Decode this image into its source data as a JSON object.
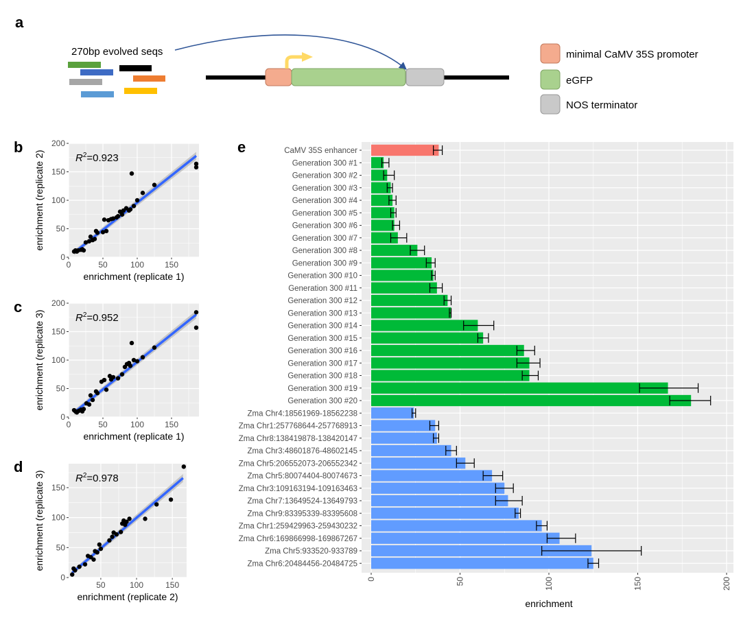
{
  "panels": {
    "a": "a",
    "b": "b",
    "c": "c",
    "d": "d",
    "e": "e"
  },
  "construct": {
    "evolved_label": "270bp evolved seqs",
    "legend": [
      {
        "label": "minimal CaMV 35S promoter",
        "color": "#f4ab8e"
      },
      {
        "label": "eGFP",
        "color": "#a9d18e"
      },
      {
        "label": "NOS terminator",
        "color": "#c9c9c9"
      }
    ],
    "seq_colors": [
      "#5aa13c",
      "#3e6bc4",
      "#000000",
      "#ee7d31",
      "#a6a6a6",
      "#ffc000",
      "#5b9bd5"
    ],
    "arrow_color": "#2f5597",
    "tss_color": "#ffd966"
  },
  "colors": {
    "panel_bg": "#ebebeb",
    "grid": "#ffffff",
    "enhancer": "#f8766d",
    "generation": "#00ba38",
    "genomic": "#619cff",
    "fit_line": "#3366ff",
    "ribbon": "#b5b5b5",
    "point": "#000000"
  },
  "chart_data": [
    {
      "type": "scatter",
      "panel": "b",
      "xlabel": "enrichment (replicate 1)",
      "ylabel": "enrichment (replicate 2)",
      "annotation": {
        "r_label": "R",
        "r_exp": "2",
        "value": "=0.923"
      },
      "xlim": [
        0,
        190
      ],
      "ylim": [
        0,
        200
      ],
      "xticks": [
        0,
        50,
        100,
        150
      ],
      "yticks": [
        0,
        50,
        100,
        150,
        200
      ],
      "fit": {
        "x": [
          8,
          186
        ],
        "y": [
          8,
          178
        ]
      },
      "points": [
        [
          8,
          10
        ],
        [
          10,
          12
        ],
        [
          12,
          10
        ],
        [
          14,
          12
        ],
        [
          18,
          13
        ],
        [
          20,
          14
        ],
        [
          22,
          12
        ],
        [
          25,
          26
        ],
        [
          30,
          28
        ],
        [
          32,
          36
        ],
        [
          35,
          30
        ],
        [
          38,
          32
        ],
        [
          40,
          46
        ],
        [
          42,
          43
        ],
        [
          50,
          44
        ],
        [
          52,
          66
        ],
        [
          55,
          46
        ],
        [
          58,
          65
        ],
        [
          62,
          67
        ],
        [
          65,
          68
        ],
        [
          70,
          70
        ],
        [
          72,
          72
        ],
        [
          75,
          80
        ],
        [
          78,
          75
        ],
        [
          80,
          82
        ],
        [
          84,
          86
        ],
        [
          88,
          82
        ],
        [
          90,
          84
        ],
        [
          92,
          147
        ],
        [
          95,
          90
        ],
        [
          100,
          100
        ],
        [
          108,
          113
        ],
        [
          125,
          127
        ],
        [
          186,
          164
        ],
        [
          186,
          158
        ]
      ]
    },
    {
      "type": "scatter",
      "panel": "c",
      "xlabel": "enrichment (replicate 1)",
      "ylabel": "enrichment (replicate 3)",
      "annotation": {
        "r_label": "R",
        "r_exp": "2",
        "value": "=0.952"
      },
      "xlim": [
        0,
        190
      ],
      "ylim": [
        0,
        200
      ],
      "xticks": [
        0,
        50,
        100,
        150
      ],
      "yticks": [
        0,
        50,
        100,
        150,
        200
      ],
      "fit": {
        "x": [
          8,
          186
        ],
        "y": [
          8,
          180
        ]
      },
      "points": [
        [
          8,
          12
        ],
        [
          10,
          10
        ],
        [
          12,
          8
        ],
        [
          15,
          11
        ],
        [
          18,
          13
        ],
        [
          20,
          10
        ],
        [
          22,
          14
        ],
        [
          26,
          24
        ],
        [
          30,
          22
        ],
        [
          32,
          38
        ],
        [
          35,
          30
        ],
        [
          40,
          45
        ],
        [
          42,
          42
        ],
        [
          48,
          62
        ],
        [
          52,
          65
        ],
        [
          55,
          48
        ],
        [
          60,
          72
        ],
        [
          62,
          66
        ],
        [
          65,
          70
        ],
        [
          72,
          68
        ],
        [
          78,
          75
        ],
        [
          82,
          88
        ],
        [
          85,
          93
        ],
        [
          88,
          95
        ],
        [
          90,
          90
        ],
        [
          92,
          130
        ],
        [
          95,
          100
        ],
        [
          100,
          98
        ],
        [
          108,
          105
        ],
        [
          125,
          122
        ],
        [
          186,
          184
        ],
        [
          186,
          157
        ]
      ]
    },
    {
      "type": "scatter",
      "panel": "d",
      "xlabel": "enrichment (replicate 2)",
      "ylabel": "enrichment (replicate 3)",
      "annotation": {
        "r_label": "R",
        "r_exp": "2",
        "value": "=0.978"
      },
      "xlim": [
        5,
        170
      ],
      "ylim": [
        0,
        190
      ],
      "xticks": [
        50,
        100,
        150
      ],
      "yticks": [
        0,
        50,
        100,
        150
      ],
      "fit": {
        "x": [
          10,
          165
        ],
        "y": [
          8,
          166
        ]
      },
      "points": [
        [
          10,
          5
        ],
        [
          12,
          15
        ],
        [
          14,
          12
        ],
        [
          20,
          18
        ],
        [
          28,
          22
        ],
        [
          32,
          36
        ],
        [
          36,
          34
        ],
        [
          40,
          30
        ],
        [
          42,
          44
        ],
        [
          45,
          42
        ],
        [
          48,
          55
        ],
        [
          50,
          48
        ],
        [
          62,
          62
        ],
        [
          66,
          68
        ],
        [
          68,
          75
        ],
        [
          72,
          72
        ],
        [
          78,
          76
        ],
        [
          80,
          90
        ],
        [
          82,
          95
        ],
        [
          84,
          88
        ],
        [
          86,
          93
        ],
        [
          90,
          98
        ],
        [
          112,
          98
        ],
        [
          128,
          122
        ],
        [
          148,
          130
        ],
        [
          166,
          185
        ]
      ]
    },
    {
      "type": "bar",
      "panel": "e",
      "orientation": "horizontal",
      "xlabel": "enrichment",
      "xlim": [
        0,
        200
      ],
      "xticks": [
        0,
        50,
        100,
        150,
        200
      ],
      "bars": [
        {
          "label": "CaMV 35S enhancer",
          "value": 38,
          "err": [
            35,
            40
          ],
          "group": "enhancer"
        },
        {
          "label": "Generation 300 #1",
          "value": 7,
          "err": [
            6,
            10
          ],
          "group": "generation"
        },
        {
          "label": "Generation 300 #2",
          "value": 9,
          "err": [
            7,
            13
          ],
          "group": "generation"
        },
        {
          "label": "Generation 300 #3",
          "value": 11,
          "err": [
            9,
            12
          ],
          "group": "generation"
        },
        {
          "label": "Generation 300 #4",
          "value": 12,
          "err": [
            10,
            14
          ],
          "group": "generation"
        },
        {
          "label": "Generation 300 #5",
          "value": 13,
          "err": [
            11,
            14
          ],
          "group": "generation"
        },
        {
          "label": "Generation 300 #6",
          "value": 13,
          "err": [
            12,
            16
          ],
          "group": "generation"
        },
        {
          "label": "Generation 300 #7",
          "value": 15,
          "err": [
            11,
            20
          ],
          "group": "generation"
        },
        {
          "label": "Generation 300 #8",
          "value": 26,
          "err": [
            22,
            30
          ],
          "group": "generation"
        },
        {
          "label": "Generation 300 #9",
          "value": 34,
          "err": [
            31,
            36
          ],
          "group": "generation"
        },
        {
          "label": "Generation 300 #10",
          "value": 35,
          "err": [
            34,
            36
          ],
          "group": "generation"
        },
        {
          "label": "Generation 300 #11",
          "value": 37,
          "err": [
            33,
            40
          ],
          "group": "generation"
        },
        {
          "label": "Generation 300 #12",
          "value": 43,
          "err": [
            41,
            45
          ],
          "group": "generation"
        },
        {
          "label": "Generation 300 #13",
          "value": 45,
          "err": [
            44,
            45
          ],
          "group": "generation"
        },
        {
          "label": "Generation 300 #14",
          "value": 60,
          "err": [
            52,
            69
          ],
          "group": "generation"
        },
        {
          "label": "Generation 300 #15",
          "value": 63,
          "err": [
            60,
            66
          ],
          "group": "generation"
        },
        {
          "label": "Generation 300 #16",
          "value": 86,
          "err": [
            82,
            92
          ],
          "group": "generation"
        },
        {
          "label": "Generation 300 #17",
          "value": 89,
          "err": [
            82,
            95
          ],
          "group": "generation"
        },
        {
          "label": "Generation 300 #18",
          "value": 89,
          "err": [
            85,
            94
          ],
          "group": "generation"
        },
        {
          "label": "Generation 300 #19",
          "value": 167,
          "err": [
            151,
            184
          ],
          "group": "generation"
        },
        {
          "label": "Generation 300 #20",
          "value": 180,
          "err": [
            168,
            191
          ],
          "group": "generation"
        },
        {
          "label": "Zma Chr4:18561969-18562238",
          "value": 24,
          "err": [
            23,
            25
          ],
          "group": "genomic"
        },
        {
          "label": "Zma Chr1:257768644-257768913",
          "value": 36,
          "err": [
            33,
            38
          ],
          "group": "genomic"
        },
        {
          "label": "Zma Chr8:138419878-138420147",
          "value": 37,
          "err": [
            35,
            38
          ],
          "group": "genomic"
        },
        {
          "label": "Zma Chr3:48601876-48602145",
          "value": 45,
          "err": [
            42,
            48
          ],
          "group": "genomic"
        },
        {
          "label": "Zma Chr5:206552073-206552342",
          "value": 53,
          "err": [
            48,
            58
          ],
          "group": "genomic"
        },
        {
          "label": "Zma Chr5:80074404-80074673",
          "value": 68,
          "err": [
            63,
            74
          ],
          "group": "genomic"
        },
        {
          "label": "Zma Chr3:109163194-109163463",
          "value": 75,
          "err": [
            70,
            80
          ],
          "group": "genomic"
        },
        {
          "label": "Zma Chr7:13649524-13649793",
          "value": 77,
          "err": [
            70,
            85
          ],
          "group": "genomic"
        },
        {
          "label": "Zma Chr9:83395339-83395608",
          "value": 83,
          "err": [
            81,
            84
          ],
          "group": "genomic"
        },
        {
          "label": "Zma Chr1:259429963-259430232",
          "value": 96,
          "err": [
            93,
            99
          ],
          "group": "genomic"
        },
        {
          "label": "Zma Chr6:169866998-169867267",
          "value": 106,
          "err": [
            99,
            115
          ],
          "group": "genomic"
        },
        {
          "label": "Zma Chr5:933520-933789",
          "value": 124,
          "err": [
            96,
            152
          ],
          "group": "genomic"
        },
        {
          "label": "Zma Chr6:20484456-20484725",
          "value": 125,
          "err": [
            122,
            128
          ],
          "group": "genomic"
        }
      ]
    }
  ]
}
